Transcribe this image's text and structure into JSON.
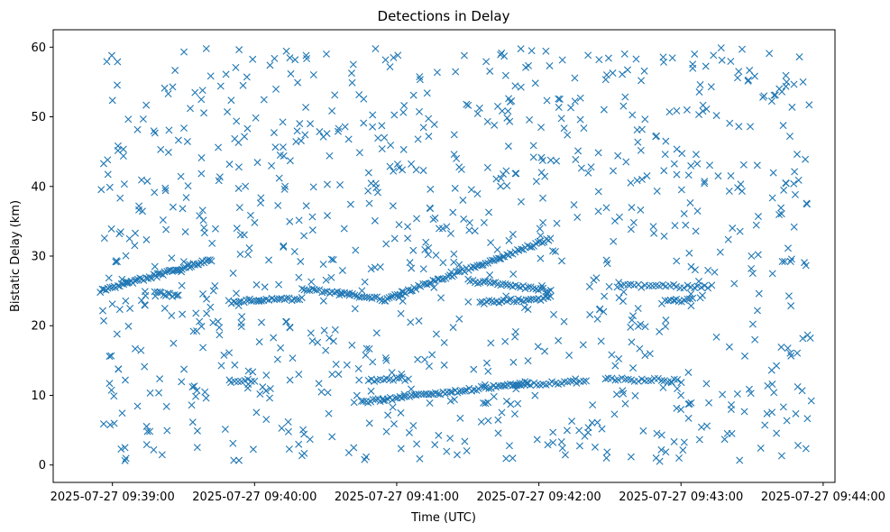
{
  "chart_data": {
    "type": "scatter",
    "title": "Detections in Delay",
    "xlabel": "Time (UTC)",
    "ylabel": "Bistatic Delay (km)",
    "marker": "x",
    "color": "#1f77b4",
    "grid": false,
    "legend": null,
    "x_unit": "time",
    "xlim": [
      "2025-07-27 09:38:35",
      "2025-07-27 09:44:05"
    ],
    "ylim": [
      -2.5,
      62.5
    ],
    "x_ticks": [
      "2025-07-27 09:39:00",
      "2025-07-27 09:40:00",
      "2025-07-27 09:41:00",
      "2025-07-27 09:42:00",
      "2025-07-27 09:43:00",
      "2025-07-27 09:44:00"
    ],
    "y_ticks": [
      0,
      10,
      20,
      30,
      40,
      50,
      60
    ],
    "tracks": [
      {
        "start": "2025-07-27 09:38:55",
        "end": "2025-07-27 09:39:42",
        "delay_start": 25.0,
        "delay_end": 29.5,
        "points": 60
      },
      {
        "start": "2025-07-27 09:39:18",
        "end": "2025-07-27 09:39:28",
        "delay_start": 24.8,
        "delay_end": 24.2,
        "points": 12
      },
      {
        "start": "2025-07-27 09:39:49",
        "end": "2025-07-27 09:40:20",
        "delay_start": 23.4,
        "delay_end": 23.9,
        "points": 30
      },
      {
        "start": "2025-07-27 09:40:20",
        "end": "2025-07-27 09:40:55",
        "delay_start": 25.3,
        "delay_end": 23.8,
        "points": 34
      },
      {
        "start": "2025-07-27 09:40:55",
        "end": "2025-07-27 09:42:05",
        "delay_start": 23.8,
        "delay_end": 32.5,
        "points": 80
      },
      {
        "start": "2025-07-27 09:41:30",
        "end": "2025-07-27 09:42:05",
        "delay_start": 26.5,
        "delay_end": 25.0,
        "points": 34
      },
      {
        "start": "2025-07-27 09:41:35",
        "end": "2025-07-27 09:42:05",
        "delay_start": 23.3,
        "delay_end": 24.0,
        "points": 30
      },
      {
        "start": "2025-07-27 09:42:33",
        "end": "2025-07-27 09:43:13",
        "delay_start": 25.7,
        "delay_end": 25.6,
        "points": 28
      },
      {
        "start": "2025-07-27 09:42:52",
        "end": "2025-07-27 09:43:05",
        "delay_start": 23.4,
        "delay_end": 23.8,
        "points": 12
      },
      {
        "start": "2025-07-27 09:40:45",
        "end": "2025-07-27 09:41:55",
        "delay_start": 9.0,
        "delay_end": 11.8,
        "points": 70
      },
      {
        "start": "2025-07-27 09:41:50",
        "end": "2025-07-27 09:42:20",
        "delay_start": 11.5,
        "delay_end": 12.0,
        "points": 24
      },
      {
        "start": "2025-07-27 09:40:48",
        "end": "2025-07-27 09:41:05",
        "delay_start": 12.2,
        "delay_end": 12.4,
        "points": 14
      },
      {
        "start": "2025-07-27 09:42:28",
        "end": "2025-07-27 09:43:00",
        "delay_start": 12.3,
        "delay_end": 12.1,
        "points": 24
      },
      {
        "start": "2025-07-27 09:39:50",
        "end": "2025-07-27 09:40:00",
        "delay_start": 12.0,
        "delay_end": 12.2,
        "points": 8
      }
    ],
    "clutter": {
      "time_range": [
        "2025-07-27 09:38:55",
        "2025-07-27 09:43:55"
      ],
      "delay_range": [
        0.5,
        60.0
      ],
      "approx_count": 950
    }
  }
}
